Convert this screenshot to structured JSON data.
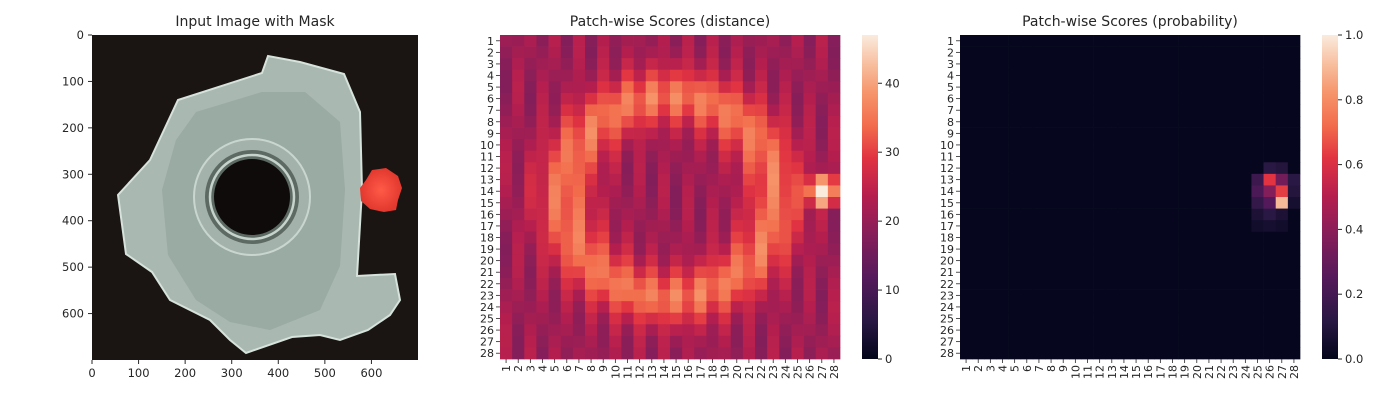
{
  "chart_data": [
    {
      "type": "image",
      "title": "Input Image with Mask",
      "xlim": [
        0,
        700
      ],
      "ylim": [
        700,
        0
      ],
      "x_ticks": [
        "0",
        "100",
        "200",
        "300",
        "400",
        "500",
        "600"
      ],
      "y_ticks": [
        "0",
        "100",
        "200",
        "300",
        "400",
        "500",
        "600"
      ],
      "image": {
        "background": "#1a1512",
        "part_color": "#aebdb5",
        "hole_color": "#0e0b0a",
        "mask_color": "#f5453a",
        "mask_center": [
          625,
          355
        ]
      }
    },
    {
      "type": "heatmap",
      "title": "Patch-wise Scores (distance)",
      "rows": [
        "1",
        "2",
        "3",
        "4",
        "5",
        "6",
        "7",
        "8",
        "9",
        "10",
        "11",
        "12",
        "13",
        "14",
        "15",
        "16",
        "17",
        "18",
        "19",
        "20",
        "21",
        "22",
        "23",
        "24",
        "25",
        "26",
        "27",
        "28"
      ],
      "cols": [
        "1",
        "2",
        "3",
        "4",
        "5",
        "6",
        "7",
        "8",
        "9",
        "10",
        "11",
        "12",
        "13",
        "14",
        "15",
        "16",
        "17",
        "18",
        "19",
        "20",
        "21",
        "22",
        "23",
        "24",
        "25",
        "26",
        "27",
        "28"
      ],
      "vmin": 0,
      "vmax": 47,
      "colormap": "rocket",
      "colorbar_ticks": [
        "0",
        "10",
        "20",
        "30",
        "40"
      ],
      "pattern": {
        "ring_center": [
          14.5,
          14.5
        ],
        "ring_radius": 8.7,
        "base": 21,
        "ring_peak": 35,
        "anomaly_center": [
          27,
          14
        ],
        "anomaly_peak": 47
      }
    },
    {
      "type": "heatmap",
      "title": "Patch-wise Scores (probability)",
      "rows": [
        "1",
        "2",
        "3",
        "4",
        "5",
        "6",
        "7",
        "8",
        "9",
        "10",
        "11",
        "12",
        "13",
        "14",
        "15",
        "16",
        "17",
        "18",
        "19",
        "20",
        "21",
        "22",
        "23",
        "24",
        "25",
        "26",
        "27",
        "28"
      ],
      "cols": [
        "1",
        "2",
        "3",
        "4",
        "5",
        "6",
        "7",
        "8",
        "9",
        "10",
        "11",
        "12",
        "13",
        "14",
        "15",
        "16",
        "17",
        "18",
        "19",
        "20",
        "21",
        "22",
        "23",
        "24",
        "25",
        "26",
        "27",
        "28"
      ],
      "vmin": 0,
      "vmax": 1,
      "colormap": "rocket",
      "colorbar_ticks": [
        "0.0",
        "0.2",
        "0.4",
        "0.6",
        "0.8",
        "1.0"
      ],
      "hot_cells": [
        {
          "row": 12,
          "col": 26,
          "value": 0.12
        },
        {
          "row": 12,
          "col": 27,
          "value": 0.1
        },
        {
          "row": 13,
          "col": 25,
          "value": 0.18
        },
        {
          "row": 13,
          "col": 26,
          "value": 0.62
        },
        {
          "row": 13,
          "col": 27,
          "value": 0.33
        },
        {
          "row": 13,
          "col": 28,
          "value": 0.12
        },
        {
          "row": 14,
          "col": 25,
          "value": 0.22
        },
        {
          "row": 14,
          "col": 26,
          "value": 0.38
        },
        {
          "row": 14,
          "col": 27,
          "value": 0.64
        },
        {
          "row": 14,
          "col": 28,
          "value": 0.1
        },
        {
          "row": 15,
          "col": 25,
          "value": 0.15
        },
        {
          "row": 15,
          "col": 26,
          "value": 0.25
        },
        {
          "row": 15,
          "col": 27,
          "value": 0.9
        },
        {
          "row": 15,
          "col": 28,
          "value": 0.06
        },
        {
          "row": 16,
          "col": 25,
          "value": 0.08
        },
        {
          "row": 16,
          "col": 26,
          "value": 0.12
        },
        {
          "row": 16,
          "col": 27,
          "value": 0.08
        },
        {
          "row": 17,
          "col": 25,
          "value": 0.05
        },
        {
          "row": 17,
          "col": 26,
          "value": 0.06
        },
        {
          "row": 17,
          "col": 27,
          "value": 0.05
        }
      ],
      "background_value": 0.01
    }
  ]
}
